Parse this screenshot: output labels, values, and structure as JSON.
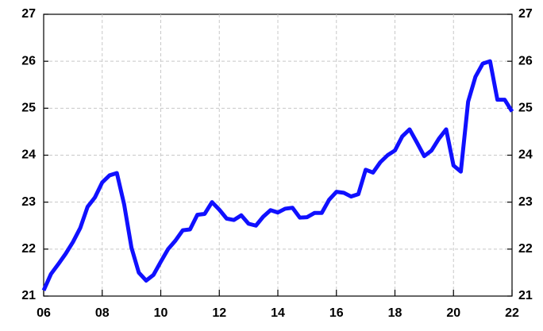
{
  "chart_data": {
    "type": "line",
    "x": [
      2006,
      2006.25,
      2006.5,
      2006.75,
      2007,
      2007.25,
      2007.5,
      2007.75,
      2008,
      2008.25,
      2008.5,
      2008.75,
      2009,
      2009.25,
      2009.5,
      2009.75,
      2010,
      2010.25,
      2010.5,
      2010.75,
      2011,
      2011.25,
      2011.5,
      2011.75,
      2012,
      2012.25,
      2012.5,
      2012.75,
      2013,
      2013.25,
      2013.5,
      2013.75,
      2014,
      2014.25,
      2014.5,
      2014.75,
      2015,
      2015.25,
      2015.5,
      2015.75,
      2016,
      2016.25,
      2016.5,
      2016.75,
      2017,
      2017.25,
      2017.5,
      2017.75,
      2018,
      2018.25,
      2018.5,
      2018.75,
      2019,
      2019.25,
      2019.5,
      2019.75,
      2020,
      2020.25,
      2020.5,
      2020.75,
      2021,
      2021.25,
      2021.5,
      2021.75,
      2022
    ],
    "series": [
      {
        "color": "#1010ff",
        "values": [
          21.12,
          21.47,
          21.68,
          21.9,
          22.15,
          22.45,
          22.9,
          23.1,
          23.42,
          23.57,
          23.62,
          22.95,
          22.03,
          21.5,
          21.33,
          21.45,
          21.73,
          22.0,
          22.18,
          22.4,
          22.42,
          22.73,
          22.75,
          23.0,
          22.84,
          22.65,
          22.62,
          22.72,
          22.54,
          22.5,
          22.69,
          22.83,
          22.78,
          22.86,
          22.88,
          22.67,
          22.68,
          22.77,
          22.77,
          23.05,
          23.22,
          23.2,
          23.12,
          23.17,
          23.69,
          23.63,
          23.85,
          24.0,
          24.1,
          24.4,
          24.55,
          24.27,
          23.98,
          24.1,
          24.35,
          24.55,
          23.78,
          23.65,
          25.14,
          25.67,
          25.95,
          26.0,
          25.18,
          25.18,
          24.93
        ]
      }
    ],
    "xlim": [
      2006,
      2022
    ],
    "xticks": [
      {
        "value": 2006,
        "label": "06"
      },
      {
        "value": 2008,
        "label": "08"
      },
      {
        "value": 2010,
        "label": "10"
      },
      {
        "value": 2012,
        "label": "12"
      },
      {
        "value": 2014,
        "label": "14"
      },
      {
        "value": 2016,
        "label": "16"
      },
      {
        "value": 2018,
        "label": "18"
      },
      {
        "value": 2020,
        "label": "20"
      },
      {
        "value": 2022,
        "label": "22"
      }
    ],
    "ylim": [
      21,
      27
    ],
    "yticks": [
      21,
      22,
      23,
      24,
      25,
      26,
      27
    ],
    "y2lim": [
      21,
      27
    ],
    "y2ticks": [
      21,
      22,
      23,
      24,
      25,
      26,
      27
    ],
    "grid": true
  }
}
